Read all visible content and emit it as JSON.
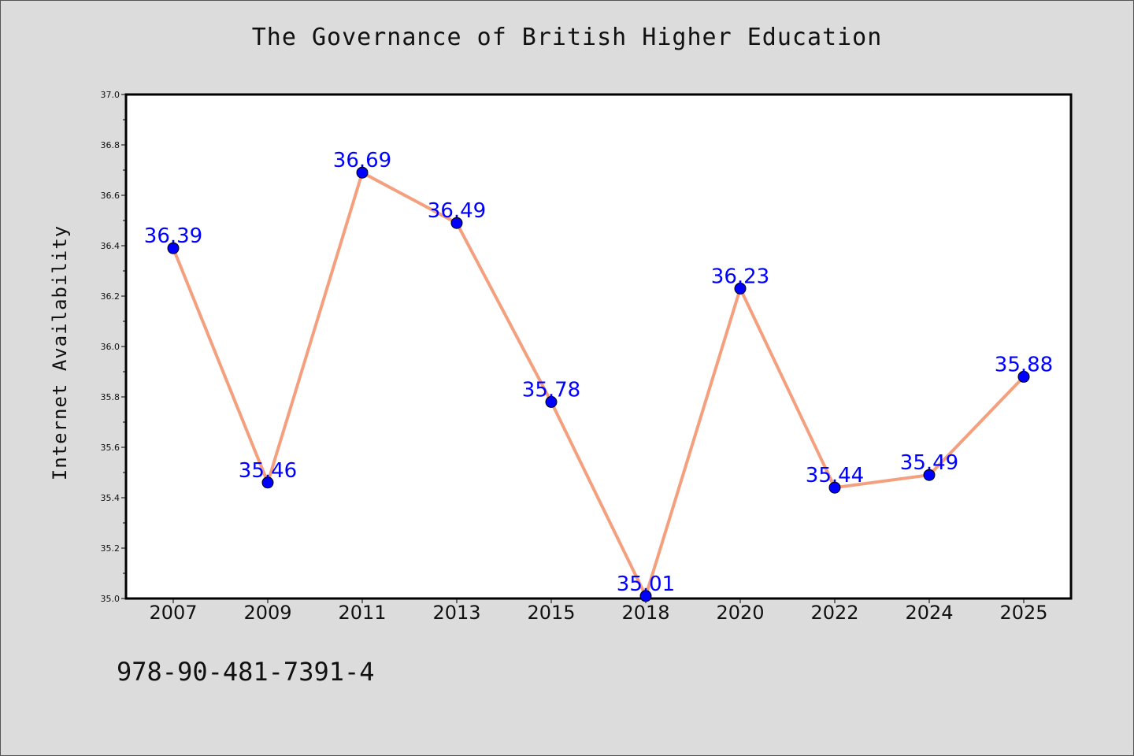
{
  "chart_data": {
    "type": "line",
    "title": "The Governance of British Higher Education",
    "xlabel": "",
    "ylabel": "Internet Availability",
    "categories": [
      "2007",
      "2009",
      "2011",
      "2013",
      "2015",
      "2018",
      "2020",
      "2022",
      "2024",
      "2025"
    ],
    "series": [
      {
        "values": [
          36.39,
          35.46,
          36.69,
          36.49,
          35.78,
          35.01,
          36.23,
          35.44,
          35.49,
          35.88
        ],
        "line_color": "#f4a07e",
        "marker_color": "#0000ff"
      }
    ],
    "ylim": [
      35.0,
      37.0
    ],
    "yticks": [
      "35.0",
      "35.2",
      "35.4",
      "35.6",
      "35.8",
      "36.0",
      "36.2",
      "36.4",
      "36.6",
      "36.8",
      "37.0"
    ],
    "grid": false,
    "data_labels": true,
    "data_label_color": "#0000ff",
    "background_color": "#dcdcdc",
    "plot_background_color": "#ffffff"
  },
  "footer": {
    "isbn": "978-90-481-7391-4"
  }
}
